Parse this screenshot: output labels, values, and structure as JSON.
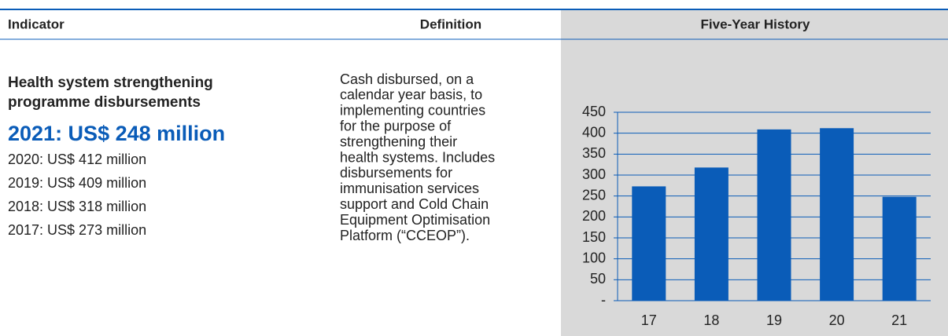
{
  "headers": [
    "Indicator",
    "Definition",
    "Five-Year History"
  ],
  "indicator": {
    "title": [
      "Health system strengthening",
      "programme disbursements"
    ],
    "current": "2021: US$ 248 million",
    "history": [
      "2020: US$ 412 million",
      "2019: US$ 409 million",
      "2018: US$ 318 million",
      "2017: US$ 273 million"
    ]
  },
  "definition": [
    "Cash disbursed, on a",
    "calendar year basis, to",
    "implementing countries",
    "for the purpose of",
    "strengthening their",
    "health systems. Includes",
    "disbursements for",
    "immunisation services",
    "support and Cold Chain",
    "Equipment Optimisation",
    "Platform (“CCEOP”)."
  ],
  "chart_data": {
    "type": "bar",
    "categories": [
      "17",
      "18",
      "19",
      "20",
      "21"
    ],
    "values": [
      273,
      318,
      409,
      412,
      248
    ],
    "color": "#0a5cb8",
    "ylim": [
      0,
      450
    ],
    "yticks": [
      {
        "value": 0,
        "label": "-"
      },
      50,
      100,
      150,
      200,
      250,
      300,
      350,
      400,
      450
    ],
    "grid": true
  }
}
